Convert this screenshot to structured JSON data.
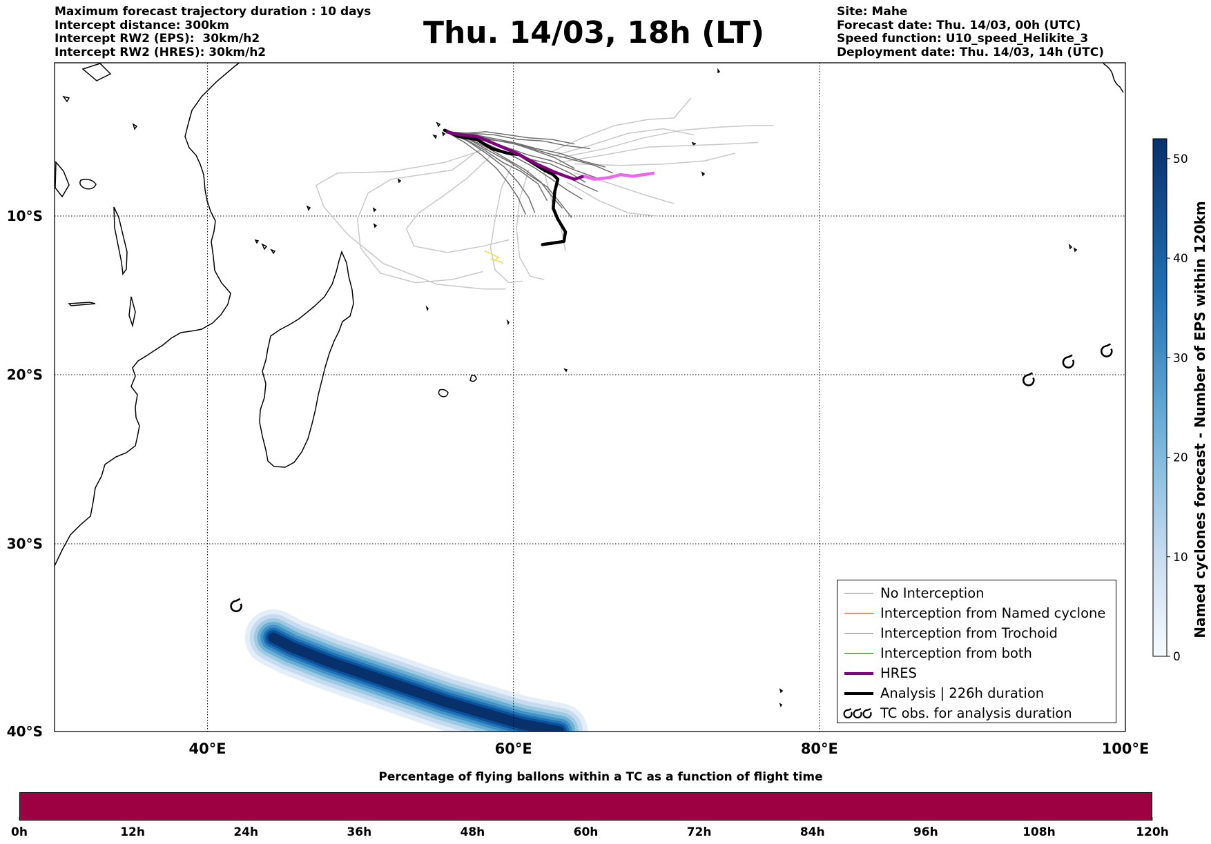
{
  "header": {
    "left": [
      "Maximum forecast trajectory duration : 10 days",
      "Intercept distance: 300km",
      "Intercept RW2 (EPS):  30km/h2",
      "Intercept RW2 (HRES): 30km/h2"
    ],
    "title": "Thu. 14/03, 18h (LT)",
    "right": [
      "Site: Mahe",
      "Forecast date: Thu. 14/03, 00h (UTC)",
      "Speed function: U10_speed_Helikite_3",
      "Deployment date: Thu. 14/03, 14h (UTC)"
    ]
  },
  "map": {
    "lon_range": [
      30,
      100
    ],
    "lat_range": [
      -40,
      0
    ],
    "lat_labels": [
      {
        "lat": -10,
        "label": "10°S"
      },
      {
        "lat": -20,
        "label": "20°S"
      },
      {
        "lat": -30,
        "label": "30°S"
      },
      {
        "lat": -40,
        "label": "40°S"
      }
    ],
    "lon_labels": [
      {
        "lon": 40,
        "label": "40°E"
      },
      {
        "lon": 60,
        "label": "60°E"
      },
      {
        "lon": 80,
        "label": "80°E"
      },
      {
        "lon": 100,
        "label": "100°E"
      }
    ],
    "grid": true,
    "hres_track": [
      [
        55.6,
        -4.5
      ],
      [
        56.5,
        -4.7
      ],
      [
        57.6,
        -4.8
      ],
      [
        58.8,
        -5.3
      ],
      [
        60.2,
        -5.9
      ],
      [
        61.5,
        -6.6
      ],
      [
        62.6,
        -7.1
      ],
      [
        63.4,
        -7.4
      ],
      [
        64.0,
        -7.6
      ],
      [
        64.6,
        -7.4
      ]
    ],
    "hres_track_extension": [
      [
        64.6,
        -7.4
      ],
      [
        65.3,
        -7.6
      ],
      [
        66.2,
        -7.5
      ],
      [
        67.0,
        -7.3
      ],
      [
        67.8,
        -7.4
      ],
      [
        68.5,
        -7.3
      ],
      [
        69.2,
        -7.2
      ]
    ],
    "analysis_track": [
      [
        55.5,
        -4.4
      ],
      [
        56.4,
        -4.8
      ],
      [
        57.6,
        -5.0
      ],
      [
        58.6,
        -5.6
      ],
      [
        59.6,
        -5.9
      ],
      [
        60.4,
        -6.0
      ],
      [
        61.2,
        -6.5
      ],
      [
        62.0,
        -7.0
      ],
      [
        62.6,
        -7.3
      ],
      [
        62.9,
        -7.6
      ],
      [
        62.7,
        -8.4
      ],
      [
        62.6,
        -9.5
      ],
      [
        62.9,
        -10.2
      ],
      [
        63.4,
        -11.0
      ],
      [
        63.3,
        -11.6
      ],
      [
        62.6,
        -11.7
      ],
      [
        61.9,
        -11.8
      ]
    ],
    "eps_tracks": [
      [
        [
          55.6,
          -4.5
        ],
        [
          57,
          -4.6
        ],
        [
          58.5,
          -4.9
        ],
        [
          60,
          -5.2
        ],
        [
          61.5,
          -5.6
        ],
        [
          63,
          -5.9
        ],
        [
          64.5,
          -6.4
        ],
        [
          66,
          -6.8
        ]
      ],
      [
        [
          55.6,
          -4.5
        ],
        [
          57,
          -4.9
        ],
        [
          58.4,
          -5.6
        ],
        [
          59.6,
          -6.3
        ],
        [
          60.8,
          -7
        ],
        [
          61.8,
          -7.8
        ],
        [
          62.5,
          -8.7
        ],
        [
          63.2,
          -9.5
        ]
      ],
      [
        [
          55.6,
          -4.5
        ],
        [
          57.2,
          -4.8
        ],
        [
          58.8,
          -5.3
        ],
        [
          60.2,
          -5.9
        ],
        [
          61.6,
          -6.6
        ],
        [
          63,
          -7.2
        ],
        [
          64.4,
          -7.9
        ],
        [
          65.5,
          -8.4
        ]
      ],
      [
        [
          55.6,
          -4.5
        ],
        [
          56.8,
          -4.6
        ],
        [
          58.2,
          -4.5
        ],
        [
          59.6,
          -4.7
        ],
        [
          61,
          -4.9
        ],
        [
          62.5,
          -5
        ],
        [
          64,
          -5.3
        ]
      ],
      [
        [
          55.6,
          -4.5
        ],
        [
          57,
          -5.1
        ],
        [
          58.2,
          -5.9
        ],
        [
          59.4,
          -6.8
        ],
        [
          60.3,
          -7.8
        ],
        [
          61,
          -8.8
        ],
        [
          61.4,
          -9.8
        ]
      ],
      [
        [
          55.6,
          -4.5
        ],
        [
          57.3,
          -4.7
        ],
        [
          59,
          -5.1
        ],
        [
          60.6,
          -5.4
        ],
        [
          62.2,
          -5.9
        ],
        [
          63.8,
          -6.3
        ],
        [
          65.3,
          -6.7
        ],
        [
          66.5,
          -7.2
        ]
      ],
      [
        [
          55.6,
          -4.5
        ],
        [
          56.9,
          -5
        ],
        [
          58.1,
          -5.7
        ],
        [
          59.3,
          -6.5
        ],
        [
          60.5,
          -7.1
        ],
        [
          61.6,
          -7.9
        ],
        [
          62.2,
          -9
        ]
      ],
      [
        [
          55.6,
          -4.5
        ],
        [
          57.1,
          -4.6
        ],
        [
          58.7,
          -4.7
        ],
        [
          60.3,
          -5
        ],
        [
          61.9,
          -5.1
        ],
        [
          63.4,
          -5.4
        ],
        [
          65,
          -5.6
        ]
      ],
      [
        [
          55.6,
          -4.5
        ],
        [
          57,
          -4.8
        ],
        [
          58.5,
          -5.4
        ],
        [
          60,
          -6.1
        ],
        [
          61.3,
          -6.8
        ],
        [
          62.5,
          -7.6
        ],
        [
          63.5,
          -8.3
        ],
        [
          64.5,
          -8.9
        ]
      ],
      [
        [
          55.6,
          -4.5
        ],
        [
          56.8,
          -5.2
        ],
        [
          57.9,
          -6
        ],
        [
          58.9,
          -6.9
        ],
        [
          59.7,
          -7.9
        ],
        [
          60.3,
          -8.8
        ],
        [
          60.8,
          -9.9
        ]
      ],
      [
        [
          55.6,
          -4.5
        ],
        [
          57.4,
          -4.9
        ],
        [
          59.2,
          -5.4
        ],
        [
          60.9,
          -6
        ],
        [
          62.5,
          -6.4
        ],
        [
          64,
          -7
        ],
        [
          65.4,
          -7.5
        ]
      ],
      [
        [
          55.6,
          -4.5
        ],
        [
          57,
          -4.7
        ],
        [
          58.4,
          -5.1
        ],
        [
          59.8,
          -5.7
        ],
        [
          61.1,
          -6.3
        ],
        [
          62.4,
          -6.6
        ],
        [
          63.7,
          -7.2
        ],
        [
          64.7,
          -7.8
        ]
      ],
      [
        [
          55.6,
          -4.5
        ],
        [
          56.9,
          -4.6
        ],
        [
          58.3,
          -5
        ],
        [
          59.8,
          -5.2
        ],
        [
          61.3,
          -5.7
        ],
        [
          62.7,
          -6.2
        ],
        [
          64,
          -6.9
        ]
      ],
      [
        [
          55.6,
          -4.5
        ],
        [
          57.1,
          -5
        ],
        [
          58.5,
          -5.8
        ],
        [
          59.8,
          -6.5
        ],
        [
          61,
          -7.3
        ],
        [
          62.2,
          -8.1
        ],
        [
          63.1,
          -9.2
        ],
        [
          63.8,
          -10.1
        ]
      ]
    ],
    "eps_tracks_light": [
      [
        [
          58,
          -5.5
        ],
        [
          56,
          -7
        ],
        [
          54,
          -7.3
        ],
        [
          52,
          -7.6
        ],
        [
          50.5,
          -8.5
        ],
        [
          49.8,
          -10.2
        ],
        [
          50,
          -12
        ],
        [
          51.3,
          -13.6
        ],
        [
          53.6,
          -14.2
        ],
        [
          56,
          -14
        ],
        [
          58,
          -13.5
        ]
      ],
      [
        [
          58.3,
          -5.6
        ],
        [
          55.5,
          -6.5
        ],
        [
          52,
          -7.1
        ],
        [
          48.5,
          -7.2
        ],
        [
          47.1,
          -8
        ],
        [
          47.6,
          -9.4
        ],
        [
          49.2,
          -11.2
        ],
        [
          51.5,
          -13
        ],
        [
          55,
          -14.3
        ],
        [
          58,
          -14.6
        ],
        [
          59.5,
          -14.6
        ]
      ],
      [
        [
          58.6,
          -6
        ],
        [
          57,
          -7.5
        ],
        [
          55.4,
          -8.7
        ],
        [
          53.8,
          -9.8
        ],
        [
          53,
          -10.8
        ],
        [
          53.5,
          -11.9
        ],
        [
          55.7,
          -12.3
        ],
        [
          58,
          -11.9
        ],
        [
          59.7,
          -11.5
        ]
      ],
      [
        [
          60,
          -6.5
        ],
        [
          59.2,
          -8.2
        ],
        [
          58.8,
          -10.2
        ],
        [
          58.5,
          -12
        ],
        [
          58.8,
          -13.4
        ],
        [
          59.7,
          -14.2
        ],
        [
          60.6,
          -14.1
        ]
      ],
      [
        [
          61,
          -7
        ],
        [
          60.4,
          -8.9
        ],
        [
          60.2,
          -10.8
        ],
        [
          60.4,
          -12.6
        ],
        [
          61.1,
          -13.8
        ],
        [
          62,
          -14
        ]
      ],
      [
        [
          62,
          -7.1
        ],
        [
          62.5,
          -9
        ],
        [
          63.1,
          -10.7
        ],
        [
          63.4,
          -12.2
        ]
      ],
      [
        [
          63,
          -6.2
        ],
        [
          66,
          -5.6
        ],
        [
          68.5,
          -4.9
        ],
        [
          71,
          -4.4
        ],
        [
          73.4,
          -4.2
        ],
        [
          75.5,
          -4.1
        ],
        [
          77,
          -4.1
        ]
      ],
      [
        [
          63,
          -6.5
        ],
        [
          66,
          -6
        ],
        [
          68.8,
          -5.5
        ],
        [
          71.5,
          -5.4
        ],
        [
          74,
          -5.3
        ],
        [
          76,
          -5.2
        ]
      ],
      [
        [
          62.5,
          -6.1
        ],
        [
          65,
          -5.4
        ],
        [
          67.5,
          -4.6
        ],
        [
          69.8,
          -4.3
        ],
        [
          71.8,
          -4.7
        ]
      ],
      [
        [
          64,
          -7.2
        ],
        [
          66.4,
          -7.9
        ],
        [
          68.5,
          -8.6
        ],
        [
          70.5,
          -9.2
        ]
      ],
      [
        [
          64,
          -6.6
        ],
        [
          67,
          -6.7
        ],
        [
          70,
          -6.6
        ],
        [
          72.5,
          -6.4
        ],
        [
          74.5,
          -5.9
        ]
      ],
      [
        [
          63.5,
          -7.8
        ],
        [
          65.6,
          -9
        ],
        [
          67.5,
          -9.8
        ],
        [
          69.4,
          -10
        ]
      ],
      [
        [
          62.5,
          -5.8
        ],
        [
          64.5,
          -4.9
        ],
        [
          66.6,
          -4.1
        ],
        [
          68.8,
          -3.7
        ],
        [
          70.5,
          -3.6
        ],
        [
          71.6,
          -2.3
        ]
      ]
    ],
    "yellow_track": [
      [
        58.1,
        -12.2
      ],
      [
        58.6,
        -12.4
      ],
      [
        59,
        -12.6
      ],
      [
        58.8,
        -12.8
      ],
      [
        58.5,
        -12.7
      ],
      [
        59.2,
        -12.9
      ],
      [
        59.3,
        -13
      ]
    ],
    "tc_symbols": [
      [
        41.9,
        -33.3
      ],
      [
        93.7,
        -20.3
      ],
      [
        96.3,
        -19.2
      ],
      [
        98.8,
        -18.5
      ]
    ],
    "heat_band": {
      "points": [
        [
          44.3,
          -35
        ],
        [
          45.5,
          -35.5
        ],
        [
          48,
          -36.3
        ],
        [
          50.5,
          -37
        ],
        [
          53,
          -37.7
        ],
        [
          55.5,
          -38.4
        ],
        [
          58,
          -39
        ],
        [
          60.5,
          -39.6
        ],
        [
          63,
          -40
        ]
      ],
      "value_max": 52
    }
  },
  "legend": {
    "items": [
      {
        "label": "No Interception",
        "color": "#808080",
        "width": 1.4
      },
      {
        "label": "Interception from Named cyclone",
        "color": "#ff4500",
        "width": 1.4
      },
      {
        "label": "Interception from Trochoid",
        "color": "#808000",
        "width": 1.4
      },
      {
        "label": "Interception from both",
        "color": "#008000",
        "width": 1.4
      },
      {
        "label": "HRES",
        "color": "#800080",
        "width": 4
      },
      {
        "label": "Analysis | 226h duration",
        "color": "#000000",
        "width": 4
      },
      {
        "label": "TC obs. for analysis duration",
        "color": "#000000",
        "icon": "tc-symbol-icon"
      }
    ]
  },
  "colorbar": {
    "label": "Named cyclones forecast - Number of EPS within 120km",
    "ticks": [
      0,
      10,
      20,
      30,
      40,
      50
    ],
    "vmin": 0,
    "vmax": 52,
    "colormap": [
      "#f7fbff",
      "#08306b"
    ]
  },
  "timebar": {
    "title": "Percentage of flying ballons within a TC as a function of flight time",
    "tick_labels": [
      "0h",
      "12h",
      "24h",
      "36h",
      "48h",
      "60h",
      "72h",
      "84h",
      "96h",
      "108h",
      "120h"
    ],
    "color": "#9e0142"
  }
}
